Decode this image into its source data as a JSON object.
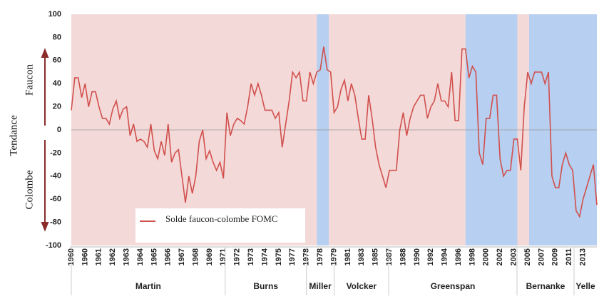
{
  "chart_data": {
    "type": "line",
    "ylabel": "Tendance",
    "upper_label": "Faucon",
    "lower_label": "Colombe",
    "ylim": [
      -100,
      100
    ],
    "yticks": [
      -100,
      -80,
      -60,
      -40,
      -20,
      0,
      20,
      40,
      60,
      80,
      100
    ],
    "categories": [
      "1960",
      null,
      null,
      null,
      "1960",
      null,
      null,
      null,
      "1961",
      null,
      null,
      null,
      "1962",
      null,
      null,
      null,
      "1963",
      null,
      null,
      null,
      "1964",
      null,
      null,
      null,
      "1965",
      null,
      null,
      null,
      "1966",
      null,
      null,
      null,
      "1967",
      null,
      null,
      null,
      "1968",
      null,
      null,
      null,
      "1969",
      null,
      null,
      null,
      "1971",
      null,
      null,
      null,
      "1972",
      null,
      null,
      null,
      "1973",
      null,
      null,
      null,
      "1974",
      null,
      null,
      null,
      "1975",
      null,
      null,
      null,
      "1977",
      null,
      null,
      null,
      "1978",
      null,
      null,
      null,
      "1978",
      null,
      null,
      null,
      "1979",
      null,
      null,
      null,
      "1981",
      null,
      null,
      null,
      "1983",
      null,
      null,
      null,
      "1985",
      null,
      null,
      null,
      "1987",
      null,
      null,
      null,
      "1988",
      null,
      null,
      null,
      "1990",
      null,
      null,
      null,
      "1992",
      null,
      null,
      null,
      "1994",
      null,
      null,
      null,
      "1996",
      null,
      null,
      null,
      "1998",
      null,
      null,
      null,
      "2000",
      null,
      null,
      null,
      "2002",
      null,
      null,
      null,
      "2003",
      null,
      null,
      null,
      "2005",
      null,
      null,
      null,
      "2007",
      null,
      null,
      null,
      "2009",
      null,
      null,
      null,
      "2011",
      null,
      null,
      null,
      "2013",
      null,
      null,
      null,
      null
    ],
    "series": [
      {
        "name": "Solde faucon-colombe FOMC",
        "color": "#d0504c",
        "values": [
          17,
          45,
          45,
          28,
          40,
          20,
          33,
          33,
          20,
          10,
          10,
          5,
          18,
          25,
          10,
          18,
          20,
          -5,
          5,
          -10,
          -8,
          -10,
          -15,
          5,
          -18,
          -25,
          -10,
          -22,
          5,
          -28,
          -20,
          -17,
          -40,
          -63,
          -40,
          -55,
          -40,
          -10,
          0,
          -25,
          -18,
          -28,
          -35,
          -28,
          -42,
          15,
          -5,
          5,
          10,
          8,
          5,
          20,
          40,
          30,
          40,
          30,
          17,
          17,
          17,
          10,
          15,
          -15,
          5,
          25,
          50,
          45,
          50,
          25,
          25,
          50,
          40,
          50,
          52,
          72,
          52,
          50,
          15,
          20,
          35,
          43,
          25,
          40,
          30,
          10,
          -8,
          -8,
          30,
          10,
          -15,
          -30,
          -40,
          -50,
          -35,
          -35,
          -35,
          0,
          15,
          -5,
          10,
          20,
          25,
          30,
          30,
          10,
          20,
          25,
          40,
          25,
          25,
          20,
          50,
          8,
          8,
          70,
          70,
          45,
          55,
          50,
          -20,
          -30,
          10,
          10,
          30,
          30,
          -25,
          -40,
          -35,
          -35,
          -8,
          -8,
          -35,
          20,
          50,
          40,
          50,
          50,
          50,
          40,
          50,
          -40,
          -50,
          -50,
          -30,
          -20,
          -30,
          -35,
          -70,
          -75,
          -60,
          -50,
          -40,
          -30,
          -65
        ]
      }
    ],
    "shading": [
      {
        "start": 0,
        "end": 71,
        "color": "#f4d9d9"
      },
      {
        "start": 71,
        "end": 74.5,
        "color": "#b7cff0"
      },
      {
        "start": 74.5,
        "end": 114,
        "color": "#f4d9d9"
      },
      {
        "start": 114,
        "end": 129,
        "color": "#b7cff0"
      },
      {
        "start": 129,
        "end": 132.4,
        "color": "#f4d9d9"
      },
      {
        "start": 132.4,
        "end": 152,
        "color": "#b7cff0"
      }
    ],
    "chairs": [
      {
        "name": "Martin",
        "start": 0,
        "end": 44.5
      },
      {
        "name": "Burns",
        "start": 44.5,
        "end": 68
      },
      {
        "name": "Miller",
        "start": 68,
        "end": 76
      },
      {
        "name": "Volcker",
        "start": 76,
        "end": 91.8
      },
      {
        "name": "Greenspan",
        "start": 91.8,
        "end": 128.9
      },
      {
        "name": "Bernanke",
        "start": 128.9,
        "end": 145.4
      },
      {
        "name": "Yelle",
        "start": 145.4,
        "end": 152
      }
    ]
  }
}
